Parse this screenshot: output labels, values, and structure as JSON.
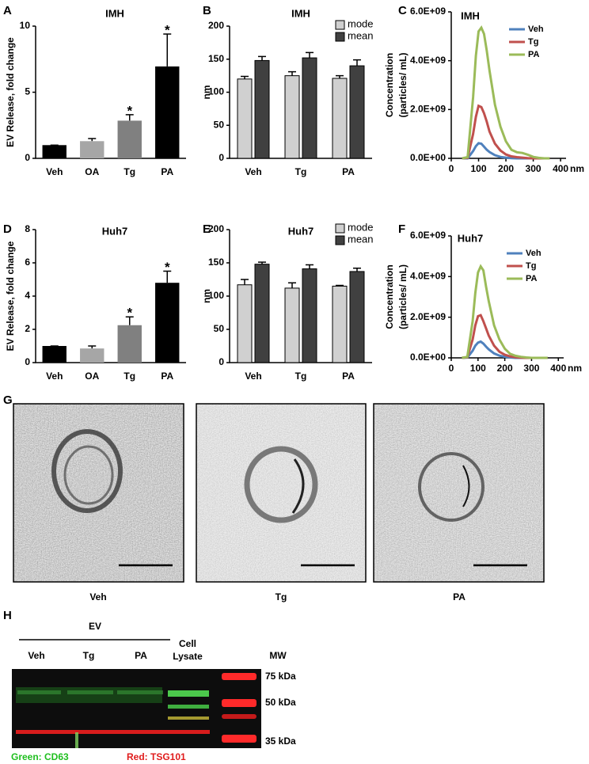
{
  "chart_data": [
    {
      "panel": "A",
      "type": "bar",
      "title": "IMH",
      "ylabel": "EV Release, fold change",
      "categories": [
        "Veh",
        "OA",
        "Tg",
        "PA"
      ],
      "values": [
        1,
        1.3,
        2.85,
        6.95
      ],
      "errors": [
        0,
        0.2,
        0.45,
        2.45
      ],
      "colors": [
        "#000000",
        "#a6a6a6",
        "#808080",
        "#000000"
      ],
      "significance": [
        null,
        null,
        "*",
        "*"
      ],
      "ylim": [
        0,
        10
      ],
      "yticks": [
        0,
        5,
        10
      ]
    },
    {
      "panel": "B",
      "type": "grouped_bar",
      "title": "IMH",
      "ylabel": "nm",
      "legend": "top-right",
      "categories": [
        "Veh",
        "Tg",
        "PA"
      ],
      "series": [
        {
          "name": "mode",
          "color": "#d0d0d0",
          "values": [
            120,
            125,
            121
          ],
          "errors": [
            4,
            6,
            4
          ]
        },
        {
          "name": "mean",
          "color": "#404040",
          "values": [
            148,
            152,
            140
          ],
          "errors": [
            6,
            8,
            9
          ]
        }
      ],
      "ylim": [
        0,
        200
      ],
      "yticks": [
        0,
        50,
        100,
        150,
        200
      ]
    },
    {
      "panel": "C",
      "type": "line",
      "title": "IMH",
      "ylabel": [
        "Concentration",
        "(particles/ mL)"
      ],
      "xlabel": "nm",
      "legend": "top-right",
      "x": [
        40,
        60,
        80,
        90,
        100,
        110,
        120,
        130,
        140,
        160,
        180,
        200,
        220,
        240,
        260,
        280,
        300,
        320,
        340,
        360
      ],
      "series": [
        {
          "name": "Veh",
          "color": "#4f81bd",
          "values": [
            0,
            0,
            300000000.0,
            500000000.0,
            620000000.0,
            600000000.0,
            480000000.0,
            350000000.0,
            260000000.0,
            130000000.0,
            60000000.0,
            30000000.0,
            10000000.0,
            0,
            0,
            0,
            0,
            0,
            0,
            0
          ]
        },
        {
          "name": "Tg",
          "color": "#c0504d",
          "values": [
            0,
            20000000.0,
            1000000000.0,
            1700000000.0,
            2150000000.0,
            2100000000.0,
            1850000000.0,
            1500000000.0,
            1100000000.0,
            600000000.0,
            320000000.0,
            160000000.0,
            80000000.0,
            50000000.0,
            30000000.0,
            10000000.0,
            0,
            0,
            0,
            0
          ]
        },
        {
          "name": "PA",
          "color": "#9bbb59",
          "values": [
            0,
            50000000.0,
            2500000000.0,
            4200000000.0,
            5200000000.0,
            5350000000.0,
            5100000000.0,
            4400000000.0,
            3600000000.0,
            2200000000.0,
            1300000000.0,
            700000000.0,
            350000000.0,
            250000000.0,
            220000000.0,
            150000000.0,
            60000000.0,
            20000000.0,
            0,
            0
          ]
        }
      ],
      "xlim": [
        0,
        420
      ],
      "xticks": [
        0,
        100,
        200,
        300,
        400
      ],
      "ylim": [
        0,
        6000000000.0
      ],
      "yticks": [
        {
          "value": 0,
          "label": "0.0E+00"
        },
        {
          "value": 2000000000.0,
          "label": "2.0E+09"
        },
        {
          "value": 4000000000.0,
          "label": "4.0E+09"
        },
        {
          "value": 6000000000.0,
          "label": "6.0E+09"
        }
      ]
    },
    {
      "panel": "D",
      "type": "bar",
      "title": "Huh7",
      "ylabel": "EV Release, fold change",
      "categories": [
        "Veh",
        "OA",
        "Tg",
        "PA"
      ],
      "values": [
        1,
        0.85,
        2.25,
        4.8
      ],
      "errors": [
        0,
        0.15,
        0.5,
        0.7
      ],
      "colors": [
        "#000000",
        "#a6a6a6",
        "#808080",
        "#000000"
      ],
      "significance": [
        null,
        null,
        "*",
        "*"
      ],
      "ylim": [
        0,
        8
      ],
      "yticks": [
        0,
        2,
        4,
        6,
        8
      ]
    },
    {
      "panel": "E",
      "type": "grouped_bar",
      "title": "Huh7",
      "ylabel": "nm",
      "legend": "top-right",
      "categories": [
        "Veh",
        "Tg",
        "PA"
      ],
      "series": [
        {
          "name": "mode",
          "color": "#d0d0d0",
          "values": [
            117,
            112,
            115
          ],
          "errors": [
            8,
            8,
            1
          ]
        },
        {
          "name": "mean",
          "color": "#404040",
          "values": [
            148,
            141,
            137
          ],
          "errors": [
            3,
            6,
            5
          ]
        }
      ],
      "ylim": [
        0,
        200
      ],
      "yticks": [
        0,
        50,
        100,
        150,
        200
      ]
    },
    {
      "panel": "F",
      "type": "line",
      "title": "Huh7",
      "ylabel": [
        "Concentration",
        "(particles/ mL)"
      ],
      "xlabel": "nm",
      "legend": "top-right",
      "x": [
        40,
        60,
        80,
        90,
        100,
        110,
        120,
        130,
        140,
        160,
        180,
        200,
        220,
        240,
        260,
        280,
        300,
        320,
        340,
        360
      ],
      "series": [
        {
          "name": "Veh",
          "color": "#4f81bd",
          "values": [
            0,
            10000000.0,
            350000000.0,
            600000000.0,
            750000000.0,
            800000000.0,
            700000000.0,
            550000000.0,
            420000000.0,
            220000000.0,
            110000000.0,
            50000000.0,
            20000000.0,
            0,
            0,
            0,
            0,
            0,
            0,
            0
          ]
        },
        {
          "name": "Tg",
          "color": "#c0504d",
          "values": [
            0,
            30000000.0,
            900000000.0,
            1600000000.0,
            2050000000.0,
            2100000000.0,
            1800000000.0,
            1450000000.0,
            1100000000.0,
            600000000.0,
            300000000.0,
            150000000.0,
            70000000.0,
            30000000.0,
            10000000.0,
            0,
            0,
            0,
            0,
            0
          ]
        },
        {
          "name": "PA",
          "color": "#9bbb59",
          "values": [
            0,
            50000000.0,
            1800000000.0,
            3200000000.0,
            4200000000.0,
            4500000000.0,
            4300000000.0,
            3500000000.0,
            2800000000.0,
            1600000000.0,
            900000000.0,
            450000000.0,
            200000000.0,
            100000000.0,
            50000000.0,
            20000000.0,
            0,
            0,
            0,
            0
          ]
        }
      ],
      "xlim": [
        0,
        420
      ],
      "xticks": [
        0,
        100,
        200,
        300,
        400
      ],
      "ylim": [
        0,
        6000000000.0
      ],
      "yticks": [
        {
          "value": 0,
          "label": "0.0E+00"
        },
        {
          "value": 2000000000.0,
          "label": "2.0E+09"
        },
        {
          "value": 4000000000.0,
          "label": "4.0E+09"
        },
        {
          "value": 6000000000.0,
          "label": "6.0E+09"
        }
      ]
    }
  ],
  "micrographs": {
    "panel": "G",
    "images": [
      {
        "label": "Veh"
      },
      {
        "label": "Tg"
      },
      {
        "label": "PA"
      }
    ]
  },
  "blot": {
    "panel": "H",
    "group_label": "EV",
    "lanes": [
      [
        "Veh"
      ],
      [
        "Tg"
      ],
      [
        "PA"
      ],
      [
        "Cell",
        "Lysate"
      ]
    ],
    "mw_title": "MW",
    "mw_markers": [
      "75 kDa",
      "50 kDa",
      "35 kDa"
    ],
    "legend": [
      "Green: CD63",
      "Red: TSG101"
    ]
  }
}
